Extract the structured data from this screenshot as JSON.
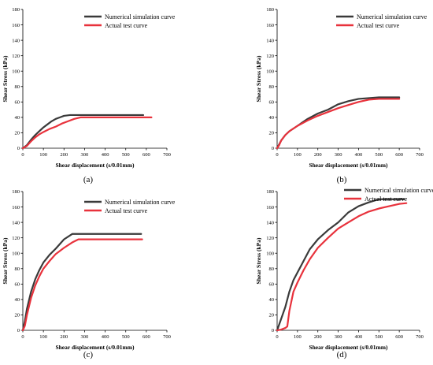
{
  "colors": {
    "numerical": "#3a3a3a",
    "actual": "#e8323c"
  },
  "chart_data": [
    {
      "id": "a",
      "type": "line",
      "panel_label": "(a)",
      "xlabel": "Shear displacement (s/0.01mm)",
      "ylabel": "Shear Stress (kPa)",
      "xlim": [
        0,
        700
      ],
      "ylim": [
        0,
        180
      ],
      "xticks": [
        0,
        100,
        200,
        300,
        400,
        500,
        600,
        700
      ],
      "yticks": [
        0,
        20,
        40,
        60,
        80,
        100,
        120,
        140,
        160,
        180
      ],
      "legend_position": "top-right",
      "series": [
        {
          "name": "Numerical simulation curve",
          "color": "#3a3a3a",
          "x": [
            0,
            20,
            40,
            60,
            80,
            100,
            120,
            140,
            160,
            180,
            200,
            230,
            260,
            300,
            400,
            500,
            585
          ],
          "y": [
            0,
            4,
            11,
            17,
            22,
            27,
            31,
            35,
            38,
            40,
            42,
            43,
            43,
            43,
            43,
            43,
            43
          ]
        },
        {
          "name": "Actual test curve",
          "color": "#e8323c",
          "x": [
            0,
            20,
            40,
            60,
            80,
            100,
            130,
            160,
            190,
            220,
            250,
            280,
            300,
            400,
            500,
            625
          ],
          "y": [
            0,
            3,
            9,
            14,
            18,
            21,
            25,
            28,
            32,
            35,
            38,
            40,
            40,
            40,
            40,
            40
          ]
        }
      ]
    },
    {
      "id": "b",
      "type": "line",
      "panel_label": "(b)",
      "xlabel": "Shear displacement (s/0.01mm)",
      "ylabel": "Shear Stress (kPa)",
      "xlim": [
        0,
        700
      ],
      "ylim": [
        0,
        180
      ],
      "xticks": [
        0,
        100,
        200,
        300,
        400,
        500,
        600,
        700
      ],
      "yticks": [
        0,
        20,
        40,
        60,
        80,
        100,
        120,
        140,
        160,
        180
      ],
      "legend_position": "top-right",
      "series": [
        {
          "name": "Numerical simulation curve",
          "color": "#3a3a3a",
          "x": [
            0,
            10,
            20,
            40,
            60,
            100,
            150,
            200,
            250,
            300,
            350,
            400,
            450,
            500,
            550,
            600
          ],
          "y": [
            0,
            5,
            10,
            17,
            22,
            29,
            38,
            45,
            50,
            57,
            61,
            64,
            65,
            66,
            66,
            66
          ]
        },
        {
          "name": "Actual test curve",
          "color": "#e8323c",
          "x": [
            0,
            10,
            20,
            40,
            60,
            100,
            150,
            200,
            250,
            300,
            350,
            400,
            450,
            500,
            550,
            600
          ],
          "y": [
            0,
            4,
            10,
            17,
            22,
            29,
            36,
            42,
            47,
            52,
            56,
            60,
            63,
            64,
            64,
            64
          ]
        }
      ]
    },
    {
      "id": "c",
      "type": "line",
      "panel_label": "(c)",
      "xlabel": "Shear displacement (s/0.01mm)",
      "ylabel": "Shear Stress (kPa)",
      "xlim": [
        0,
        700
      ],
      "ylim": [
        0,
        180
      ],
      "xticks": [
        0,
        100,
        200,
        300,
        400,
        500,
        600,
        700
      ],
      "yticks": [
        0,
        20,
        40,
        60,
        80,
        100,
        120,
        140,
        160,
        180
      ],
      "legend_position": "top-right",
      "series": [
        {
          "name": "Numerical simulation curve",
          "color": "#3a3a3a",
          "x": [
            0,
            10,
            20,
            40,
            60,
            80,
            100,
            130,
            160,
            200,
            240,
            260,
            300,
            400,
            500,
            575
          ],
          "y": [
            0,
            12,
            28,
            50,
            66,
            78,
            88,
            98,
            106,
            118,
            125,
            125,
            125,
            125,
            125,
            125
          ]
        },
        {
          "name": "Actual test curve",
          "color": "#e8323c",
          "x": [
            0,
            10,
            20,
            40,
            60,
            80,
            100,
            130,
            160,
            200,
            240,
            270,
            300,
            400,
            500,
            580
          ],
          "y": [
            0,
            6,
            20,
            42,
            58,
            70,
            80,
            90,
            99,
            107,
            114,
            118,
            118,
            118,
            118,
            118
          ]
        }
      ]
    },
    {
      "id": "d",
      "type": "line",
      "panel_label": "(d)",
      "xlabel": "Shear displacement (s/0.01mm)",
      "ylabel": "Shear Stress (kPa)",
      "xlim": [
        0,
        700
      ],
      "ylim": [
        0,
        180
      ],
      "xticks": [
        0,
        100,
        200,
        300,
        400,
        500,
        600,
        700
      ],
      "yticks": [
        0,
        20,
        40,
        60,
        80,
        100,
        120,
        140,
        160,
        180
      ],
      "legend_position": "top-right",
      "series": [
        {
          "name": "Numerical simulation curve",
          "color": "#3a3a3a",
          "x": [
            0,
            20,
            40,
            60,
            80,
            100,
            130,
            160,
            200,
            250,
            300,
            350,
            400,
            450,
            500,
            550,
            600,
            625
          ],
          "y": [
            0,
            15,
            30,
            50,
            65,
            75,
            90,
            105,
            118,
            130,
            140,
            153,
            161,
            166,
            170,
            170,
            170,
            170
          ]
        },
        {
          "name": "Actual test curve",
          "color": "#e8323c",
          "x": [
            0,
            20,
            40,
            50,
            60,
            80,
            100,
            130,
            160,
            200,
            250,
            300,
            350,
            400,
            450,
            500,
            550,
            600,
            635
          ],
          "y": [
            0,
            1,
            3,
            5,
            25,
            50,
            62,
            78,
            92,
            107,
            120,
            132,
            140,
            148,
            154,
            158,
            161,
            164,
            165
          ]
        }
      ]
    }
  ]
}
